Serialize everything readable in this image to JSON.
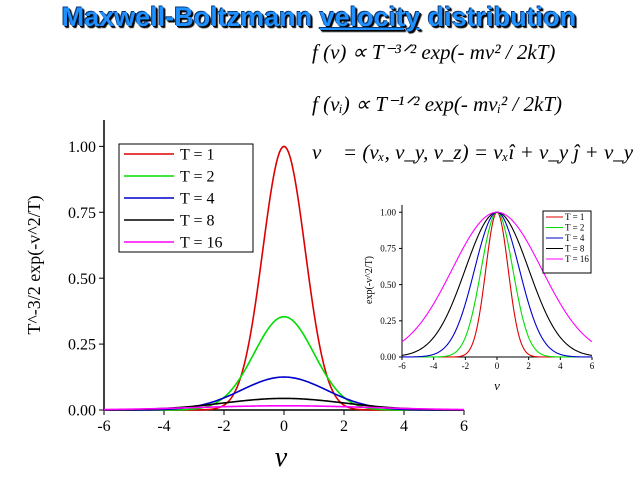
{
  "title": {
    "part1": "Maxwell-Boltzmann ",
    "part2": "velocity",
    "part3": " distribution"
  },
  "equations": {
    "eq1": "f (v) ∝ T⁻³ᐟ² exp(- mv² / 2kT)",
    "eq2": "f (vᵢ) ∝ T⁻¹ᐟ² exp(- mvᵢ² / 2kT)",
    "eq3": "v⃗ = (vₓ, v_y, v_z) = vₓî + v_y ĵ + v_y k̂"
  },
  "chart_data": [
    {
      "type": "line",
      "title": "",
      "xlabel": "v",
      "ylabel": "T^-3/2 exp(-v^2/T)",
      "xlim": [
        -6,
        6
      ],
      "ylim": [
        0,
        1.1
      ],
      "xticks": [
        "-6",
        "-4",
        "-2",
        "0",
        "2",
        "4",
        "6"
      ],
      "yticks": [
        "0.00",
        "0.25",
        "0.50",
        "0.75",
        "1.00"
      ],
      "legend_position": "top-left",
      "series": [
        {
          "name": "T = 1",
          "color": "#dd0000",
          "T": 1,
          "peak": 1.0
        },
        {
          "name": "T = 2",
          "color": "#00dd00",
          "T": 2,
          "peak": 0.354
        },
        {
          "name": "T = 4",
          "color": "#0000cc",
          "T": 4,
          "peak": 0.125
        },
        {
          "name": "T = 8",
          "color": "#000000",
          "T": 8,
          "peak": 0.044
        },
        {
          "name": "T = 16",
          "color": "#ff00ff",
          "T": 16,
          "peak": 0.016
        }
      ]
    },
    {
      "type": "line",
      "title": "",
      "xlabel": "v",
      "ylabel": "exp(-v^2/T)",
      "xlim": [
        -6,
        6
      ],
      "ylim": [
        0,
        1.05
      ],
      "xticks": [
        "-6",
        "-4",
        "-2",
        "0",
        "2",
        "4",
        "6"
      ],
      "yticks": [
        "0.00",
        "0.25",
        "0.50",
        "0.75",
        "1.00"
      ],
      "legend_position": "top-right",
      "series": [
        {
          "name": "T = 1",
          "color": "#dd0000",
          "T": 1,
          "peak": 1.0
        },
        {
          "name": "T = 2",
          "color": "#00dd00",
          "T": 2,
          "peak": 1.0
        },
        {
          "name": "T = 4",
          "color": "#0000cc",
          "T": 4,
          "peak": 1.0
        },
        {
          "name": "T = 8",
          "color": "#000000",
          "T": 8,
          "peak": 1.0
        },
        {
          "name": "T = 16",
          "color": "#ff00ff",
          "T": 16,
          "peak": 1.0
        }
      ]
    }
  ]
}
